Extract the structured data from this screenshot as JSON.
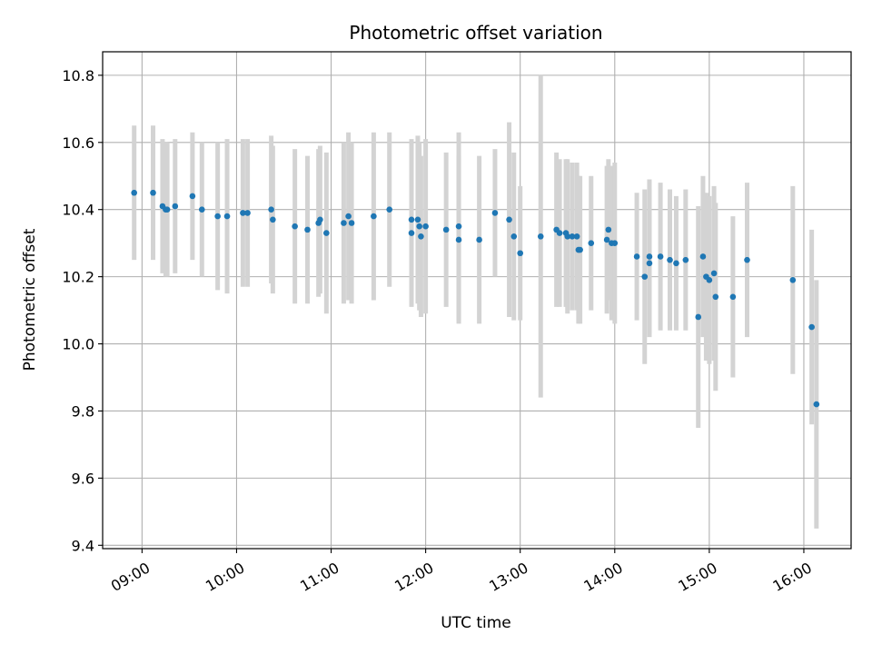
{
  "chart_data": {
    "type": "scatter",
    "title": "Photometric offset variation",
    "xlabel": "UTC time",
    "ylabel": "Photometric offset",
    "x_ticks": [
      "09:00",
      "10:00",
      "11:00",
      "12:00",
      "13:00",
      "14:00",
      "15:00",
      "16:00"
    ],
    "y_ticks": [
      "9.4",
      "9.6",
      "9.8",
      "10.0",
      "10.2",
      "10.4",
      "10.6",
      "10.8"
    ],
    "xlim": [
      "08:35",
      "16:30"
    ],
    "ylim": [
      9.39,
      10.87
    ],
    "grid": true,
    "colors": {
      "points": "#1f77b4",
      "errorbars": "#d3d3d3",
      "grid": "#b0b0b0"
    },
    "series": [
      {
        "x": [
          "08:55",
          "09:07",
          "09:13",
          "09:15",
          "09:16",
          "09:21",
          "09:32",
          "09:38",
          "09:48",
          "09:54",
          "10:04",
          "10:07",
          "10:22",
          "10:23",
          "10:37",
          "10:45",
          "10:52",
          "10:53",
          "10:57",
          "11:08",
          "11:11",
          "11:13",
          "11:27",
          "11:37",
          "11:51",
          "11:51",
          "11:55",
          "11:56",
          "11:57",
          "12:00",
          "12:13",
          "12:21",
          "12:21",
          "12:34",
          "12:44",
          "12:53",
          "12:56",
          "13:00",
          "13:13",
          "13:23",
          "13:25",
          "13:29",
          "13:30",
          "13:33",
          "13:36",
          "13:37",
          "13:38",
          "13:45",
          "13:55",
          "13:56",
          "13:58",
          "14:00",
          "14:14",
          "14:19",
          "14:22",
          "14:22",
          "14:29",
          "14:35",
          "14:39",
          "14:45",
          "14:53",
          "14:56",
          "14:58",
          "15:00",
          "15:03",
          "15:04",
          "15:15",
          "15:24",
          "15:53",
          "16:05",
          "16:08"
        ],
        "y": [
          10.45,
          10.45,
          10.41,
          10.4,
          10.4,
          10.41,
          10.44,
          10.4,
          10.38,
          10.38,
          10.39,
          10.39,
          10.4,
          10.37,
          10.35,
          10.34,
          10.36,
          10.37,
          10.33,
          10.36,
          10.38,
          10.36,
          10.38,
          10.4,
          10.33,
          10.37,
          10.37,
          10.35,
          10.32,
          10.35,
          10.34,
          10.31,
          10.35,
          10.31,
          10.39,
          10.37,
          10.32,
          10.27,
          10.32,
          10.34,
          10.33,
          10.33,
          10.32,
          10.32,
          10.32,
          10.28,
          10.28,
          10.3,
          10.31,
          10.34,
          10.3,
          10.3,
          10.26,
          10.2,
          10.26,
          10.24,
          10.26,
          10.25,
          10.24,
          10.25,
          10.08,
          10.26,
          10.2,
          10.19,
          10.21,
          10.14,
          10.14,
          10.25,
          10.19,
          10.05,
          9.82
        ],
        "yerr": [
          0.2,
          0.2,
          0.2,
          0.2,
          0.2,
          0.2,
          0.19,
          0.2,
          0.22,
          0.23,
          0.22,
          0.22,
          0.22,
          0.22,
          0.23,
          0.22,
          0.22,
          0.22,
          0.24,
          0.24,
          0.25,
          0.24,
          0.25,
          0.23,
          0.22,
          0.24,
          0.25,
          0.25,
          0.24,
          0.26,
          0.23,
          0.25,
          0.28,
          0.25,
          0.19,
          0.29,
          0.25,
          0.2,
          0.48,
          0.23,
          0.22,
          0.22,
          0.23,
          0.22,
          0.22,
          0.22,
          0.22,
          0.2,
          0.22,
          0.21,
          0.23,
          0.24,
          0.19,
          0.26,
          0.23,
          0.22,
          0.22,
          0.21,
          0.2,
          0.21,
          0.33,
          0.24,
          0.25,
          0.25,
          0.26,
          0.28,
          0.24,
          0.23,
          0.28,
          0.29,
          0.37
        ]
      }
    ]
  }
}
